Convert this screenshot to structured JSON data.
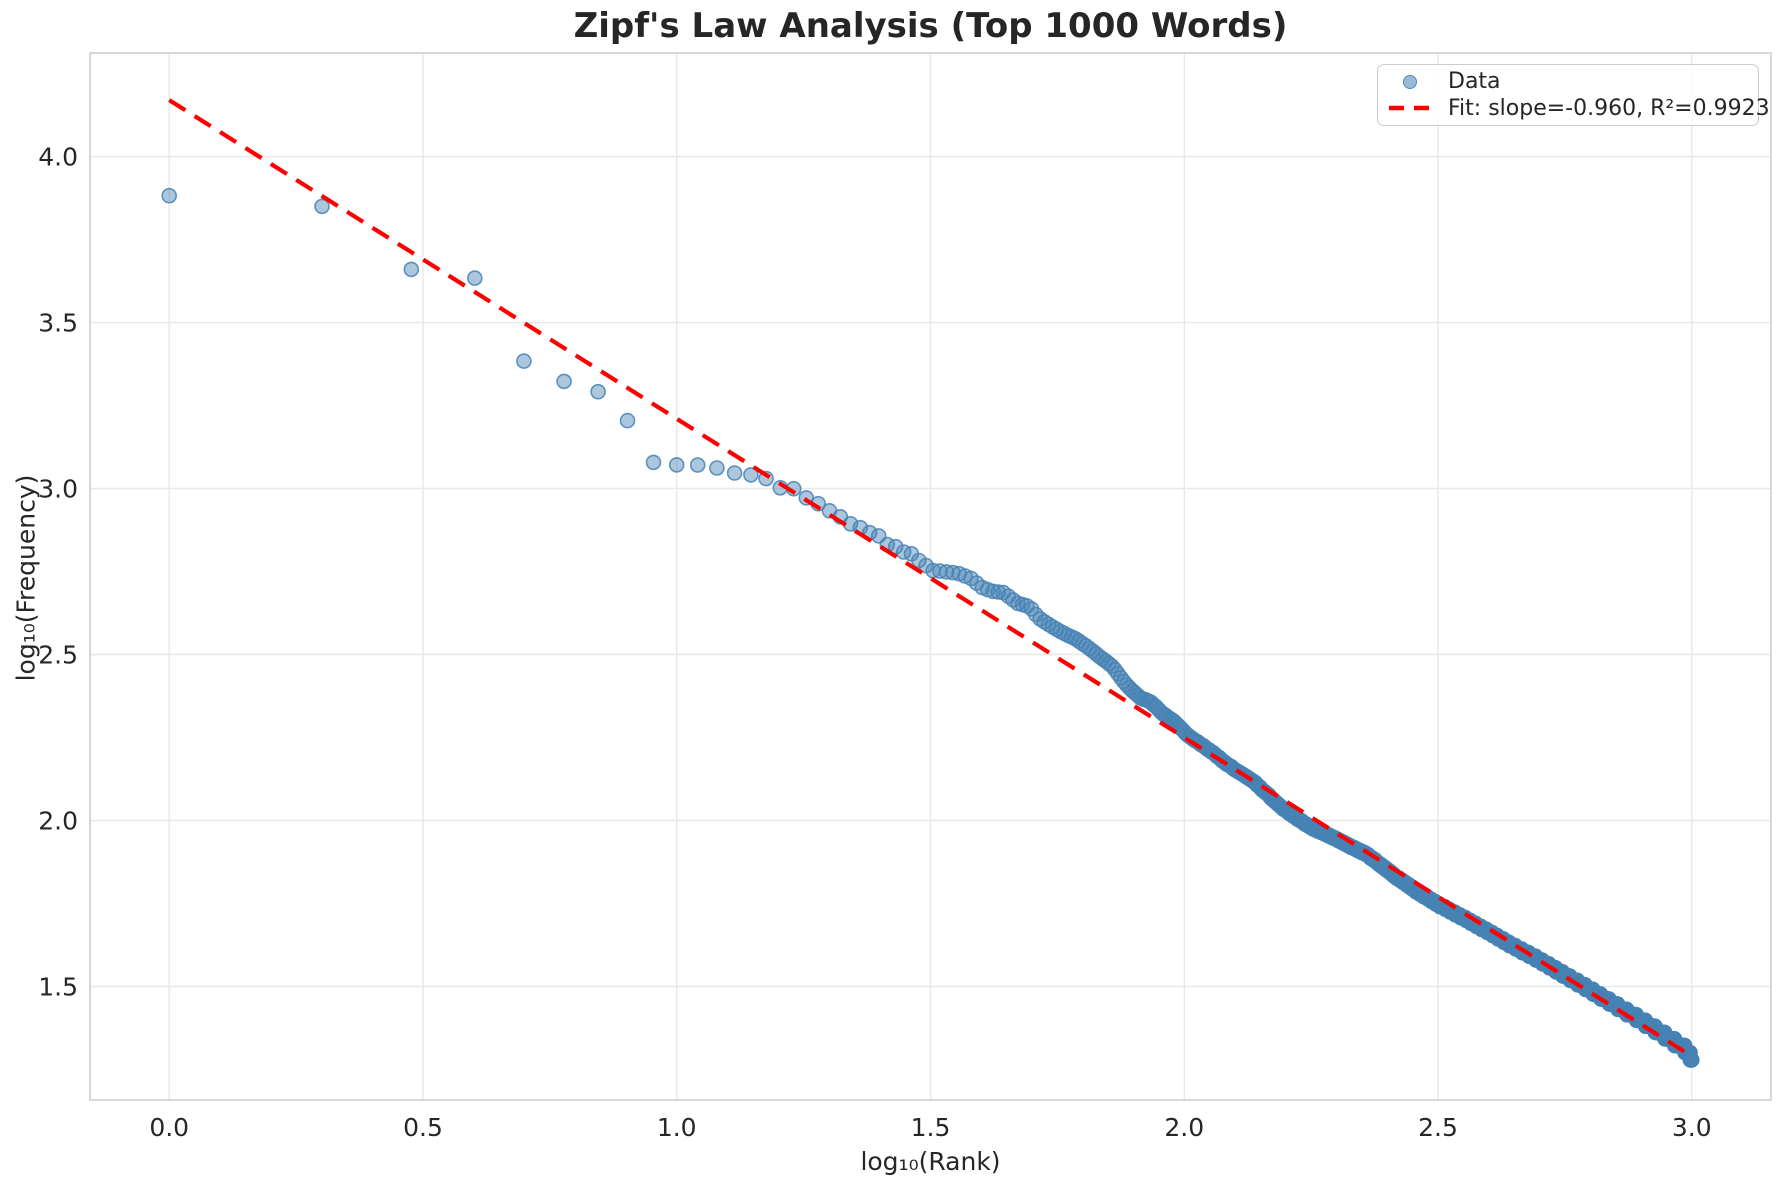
{
  "chart_data": {
    "type": "scatter",
    "title": "Zipf's Law Analysis (Top 1000 Words)",
    "xlabel": "log₁₀(Rank)",
    "ylabel": "log₁₀(Frequency)",
    "xlim": [
      -0.156,
      3.156
    ],
    "ylim": [
      1.158,
      4.312
    ],
    "xticks": {
      "values": [
        0.0,
        0.5,
        1.0,
        1.5,
        2.0,
        2.5,
        3.0
      ],
      "labels": [
        "0.0",
        "0.5",
        "1.0",
        "1.5",
        "2.0",
        "2.5",
        "3.0"
      ]
    },
    "yticks": {
      "values": [
        1.5,
        2.0,
        2.5,
        3.0,
        3.5,
        4.0
      ],
      "labels": [
        "1.5",
        "2.0",
        "2.5",
        "3.0",
        "3.5",
        "4.0"
      ]
    },
    "grid": {
      "show": true,
      "color": "#e8e8e8"
    },
    "spine_color": "#cccccc",
    "text_color": "#262626",
    "legend": {
      "position": "upper-right",
      "entries": [
        {
          "label": "Data",
          "marker": "circle",
          "color": "#4682b4"
        },
        {
          "label": "Fit: slope=-0.960, R²=0.9923",
          "marker": "dashed-line",
          "color": "#ff0000"
        }
      ]
    },
    "series": [
      {
        "name": "Data",
        "kind": "scatter",
        "color": "#4682b4",
        "fill_alpha": 0.45,
        "edge_alpha": 0.85,
        "marker_radius": 7,
        "n_points": 1000,
        "x_definition": "log10(rank) for rank = 1..1000",
        "y_definition": "log10(frequency); frequency curve read from anchors below, frequencies are integer counts",
        "curve_anchors_log10rank_log10freq": [
          [
            0.0,
            3.882
          ],
          [
            0.301,
            3.85
          ],
          [
            0.477,
            3.66
          ],
          [
            0.602,
            3.634
          ],
          [
            0.699,
            3.384
          ],
          [
            0.778,
            3.323
          ],
          [
            0.845,
            3.292
          ],
          [
            0.903,
            3.205
          ],
          [
            0.954,
            3.079
          ],
          [
            1.0,
            3.071
          ],
          [
            1.041,
            3.071
          ],
          [
            1.079,
            3.062
          ],
          [
            1.114,
            3.047
          ],
          [
            1.146,
            3.041
          ],
          [
            1.176,
            3.03
          ],
          [
            1.204,
            3.002
          ],
          [
            1.23,
            3.0
          ],
          [
            1.255,
            2.972
          ],
          [
            1.279,
            2.954
          ],
          [
            1.301,
            2.933
          ],
          [
            1.322,
            2.915
          ],
          [
            1.342,
            2.894
          ],
          [
            1.362,
            2.882
          ],
          [
            1.38,
            2.867
          ],
          [
            1.398,
            2.857
          ],
          [
            1.415,
            2.831
          ],
          [
            1.431,
            2.825
          ],
          [
            1.447,
            2.809
          ],
          [
            1.462,
            2.804
          ],
          [
            1.477,
            2.783
          ],
          [
            1.505,
            2.753
          ],
          [
            1.531,
            2.749
          ],
          [
            1.556,
            2.744
          ],
          [
            1.58,
            2.729
          ],
          [
            1.602,
            2.702
          ],
          [
            1.623,
            2.69
          ],
          [
            1.643,
            2.687
          ],
          [
            1.672,
            2.654
          ],
          [
            1.695,
            2.645
          ],
          [
            1.712,
            2.612
          ],
          [
            1.735,
            2.588
          ],
          [
            1.758,
            2.567
          ],
          [
            1.784,
            2.549
          ],
          [
            1.81,
            2.522
          ],
          [
            1.833,
            2.494
          ],
          [
            1.86,
            2.462
          ],
          [
            1.883,
            2.413
          ],
          [
            1.912,
            2.371
          ],
          [
            1.935,
            2.356
          ],
          [
            1.957,
            2.323
          ],
          [
            1.984,
            2.293
          ],
          [
            2.006,
            2.257
          ],
          [
            2.03,
            2.232
          ],
          [
            2.056,
            2.205
          ],
          [
            2.082,
            2.172
          ],
          [
            2.108,
            2.145
          ],
          [
            2.133,
            2.122
          ],
          [
            2.161,
            2.083
          ],
          [
            2.193,
            2.038
          ],
          [
            2.226,
            2.002
          ],
          [
            2.259,
            1.972
          ],
          [
            2.291,
            1.951
          ],
          [
            2.325,
            1.924
          ],
          [
            2.36,
            1.898
          ],
          [
            2.41,
            1.838
          ],
          [
            2.455,
            1.79
          ],
          [
            2.5,
            1.747
          ],
          [
            2.55,
            1.707
          ],
          [
            2.6,
            1.664
          ],
          [
            2.65,
            1.62
          ],
          [
            2.7,
            1.579
          ],
          [
            2.75,
            1.534
          ],
          [
            2.8,
            1.489
          ],
          [
            2.85,
            1.443
          ],
          [
            2.9,
            1.398
          ],
          [
            2.95,
            1.349
          ],
          [
            2.98,
            1.318
          ],
          [
            2.993,
            1.305
          ],
          [
            3.0,
            1.278
          ]
        ]
      },
      {
        "name": "Fit",
        "kind": "line",
        "style": "dashed",
        "color": "#ff0000",
        "slope": -0.96,
        "intercept": 4.17,
        "r_squared": 0.9923,
        "x_start": 0.0,
        "x_end": 3.0
      }
    ]
  }
}
